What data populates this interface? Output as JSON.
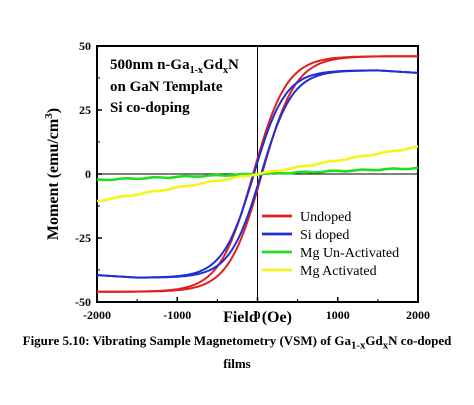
{
  "chart_data": {
    "type": "line",
    "annotation": {
      "line1_prefix": "500nm n-Ga",
      "line1_sub1": "1-x",
      "line1_mid": "Gd",
      "line1_sub2": "x",
      "line1_suffix": "N",
      "line2": "on GaN Template",
      "line3": "Si co-doping"
    },
    "xlabel": "Field (Oe)",
    "ylabel": "Moment (emu/cm",
    "ylabel_sup": "3",
    "ylabel_end": ")",
    "xlim": [
      -2000,
      2000
    ],
    "ylim": [
      -50,
      50
    ],
    "xticks": [
      -2000,
      -1000,
      0,
      1000,
      2000
    ],
    "yticks": [
      -50,
      -25,
      0,
      25,
      50
    ],
    "legend_position": "bottom-right",
    "series": [
      {
        "name": "Undoped",
        "color": "#e0201f",
        "ms": 46,
        "h0": 420,
        "hc": 55,
        "m_at_max": 46,
        "linear": false
      },
      {
        "name": "Si doped",
        "color": "#1f2fd0",
        "ms": 40.5,
        "h0": 390,
        "hc": 45,
        "m_at_max": 39.5,
        "linear": false
      },
      {
        "name": "Mg Un-Activated",
        "color": "#22dd22",
        "slope": 0.00115,
        "linear": true
      },
      {
        "name": "Mg Activated",
        "color": "#f5f51a",
        "slope": 0.0053,
        "linear": true
      }
    ]
  },
  "caption": {
    "prefix": "Figure 5.10: Vibrating Sample Magnetometry (VSM) of Ga",
    "sub1": "1-x",
    "mid": "Gd",
    "sub2": "x",
    "suffix": "N co-doped",
    "line2": "films"
  }
}
